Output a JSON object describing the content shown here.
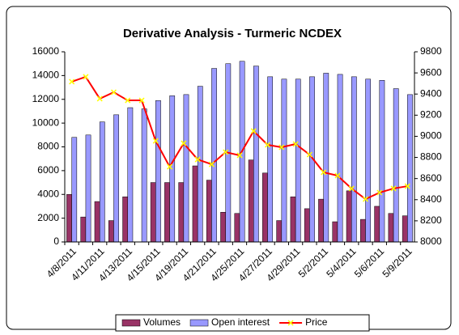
{
  "chart_data": {
    "type": "bar_line",
    "title": "Derivative Analysis - Turmeric NCDEX",
    "categories": [
      "4/8/2011",
      null,
      "4/11/2011",
      null,
      "4/13/2011",
      null,
      "4/15/2011",
      null,
      "4/19/2011",
      null,
      "4/21/2011",
      null,
      "4/25/2011",
      null,
      "4/27/2011",
      null,
      "4/29/2011",
      null,
      "5/2/2011",
      null,
      "5/4/2011",
      null,
      "5/6/2011",
      null,
      "5/9/2011"
    ],
    "series": [
      {
        "name": "Volumes",
        "color": "#993366",
        "kind": "bar",
        "values": [
          4000,
          2100,
          3400,
          1800,
          3800,
          0,
          5000,
          5000,
          5000,
          6400,
          5200,
          2500,
          2400,
          6900,
          5800,
          1800,
          3800,
          2800,
          3600,
          1700,
          4300,
          1900,
          3000,
          2400,
          2200
        ]
      },
      {
        "name": "Open interest",
        "color": "#9999ff",
        "kind": "bar",
        "values": [
          8800,
          9000,
          10100,
          10700,
          11300,
          11200,
          11900,
          12300,
          12400,
          13100,
          14600,
          15000,
          15200,
          14800,
          13900,
          13700,
          13700,
          13900,
          14200,
          14100,
          13900,
          13700,
          13600,
          12900,
          12400
        ]
      },
      {
        "name": "Price",
        "color": "#ff0000",
        "marker_color": "#ffff00",
        "kind": "line",
        "axis": "y2",
        "values": [
          9517,
          9563,
          9356,
          9417,
          9340,
          9340,
          8957,
          8712,
          8934,
          8781,
          8735,
          8850,
          8820,
          9050,
          8919,
          8896,
          8927,
          8827,
          8659,
          8628,
          8506,
          8406,
          8467,
          8506,
          8528
        ]
      }
    ],
    "ylim": [
      0,
      16000
    ],
    "yticks": [
      0,
      2000,
      4000,
      6000,
      8000,
      10000,
      12000,
      14000,
      16000
    ],
    "y2lim": [
      8000,
      9800
    ],
    "y2ticks": [
      8000,
      8200,
      8400,
      8600,
      8800,
      9000,
      9200,
      9400,
      9600,
      9800
    ],
    "legend": "bottom"
  }
}
